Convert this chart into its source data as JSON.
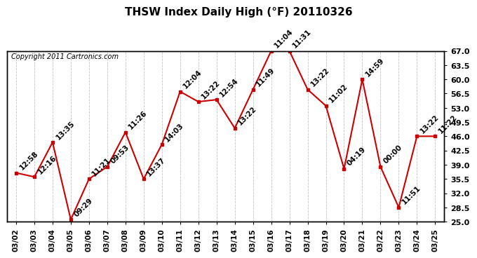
{
  "title": "THSW Index Daily High (°F) 20110326",
  "copyright": "Copyright 2011 Cartronics.com",
  "dates": [
    "03/02",
    "03/03",
    "03/04",
    "03/05",
    "03/06",
    "03/07",
    "03/08",
    "03/09",
    "03/10",
    "03/11",
    "03/12",
    "03/13",
    "03/14",
    "03/15",
    "03/16",
    "03/17",
    "03/18",
    "03/19",
    "03/20",
    "03/21",
    "03/22",
    "03/23",
    "03/24",
    "03/25"
  ],
  "values": [
    37.0,
    36.0,
    44.5,
    25.5,
    35.5,
    38.5,
    47.0,
    35.5,
    44.0,
    57.0,
    54.5,
    55.0,
    48.0,
    57.5,
    67.0,
    67.0,
    57.5,
    53.5,
    38.0,
    60.0,
    38.5,
    28.5,
    46.0,
    46.0
  ],
  "times": [
    "12:58",
    "12:16",
    "13:35",
    "09:29",
    "11:21",
    "09:53",
    "11:26",
    "13:37",
    "14:03",
    "12:04",
    "13:22",
    "12:54",
    "13:22",
    "11:49",
    "11:04",
    "11:31",
    "13:22",
    "11:02",
    "04:19",
    "14:59",
    "00:00",
    "11:51",
    "13:22",
    "11:22"
  ],
  "ylim": [
    25.0,
    67.0
  ],
  "yticks": [
    25.0,
    28.5,
    32.0,
    35.5,
    39.0,
    42.5,
    46.0,
    49.5,
    53.0,
    56.5,
    60.0,
    63.5,
    67.0
  ],
  "line_color": "#cc0000",
  "marker_color": "#cc0000",
  "bg_color": "#ffffff",
  "grid_color": "#aaaaaa",
  "title_fontsize": 11,
  "copyright_fontsize": 7,
  "label_fontsize": 7.5
}
